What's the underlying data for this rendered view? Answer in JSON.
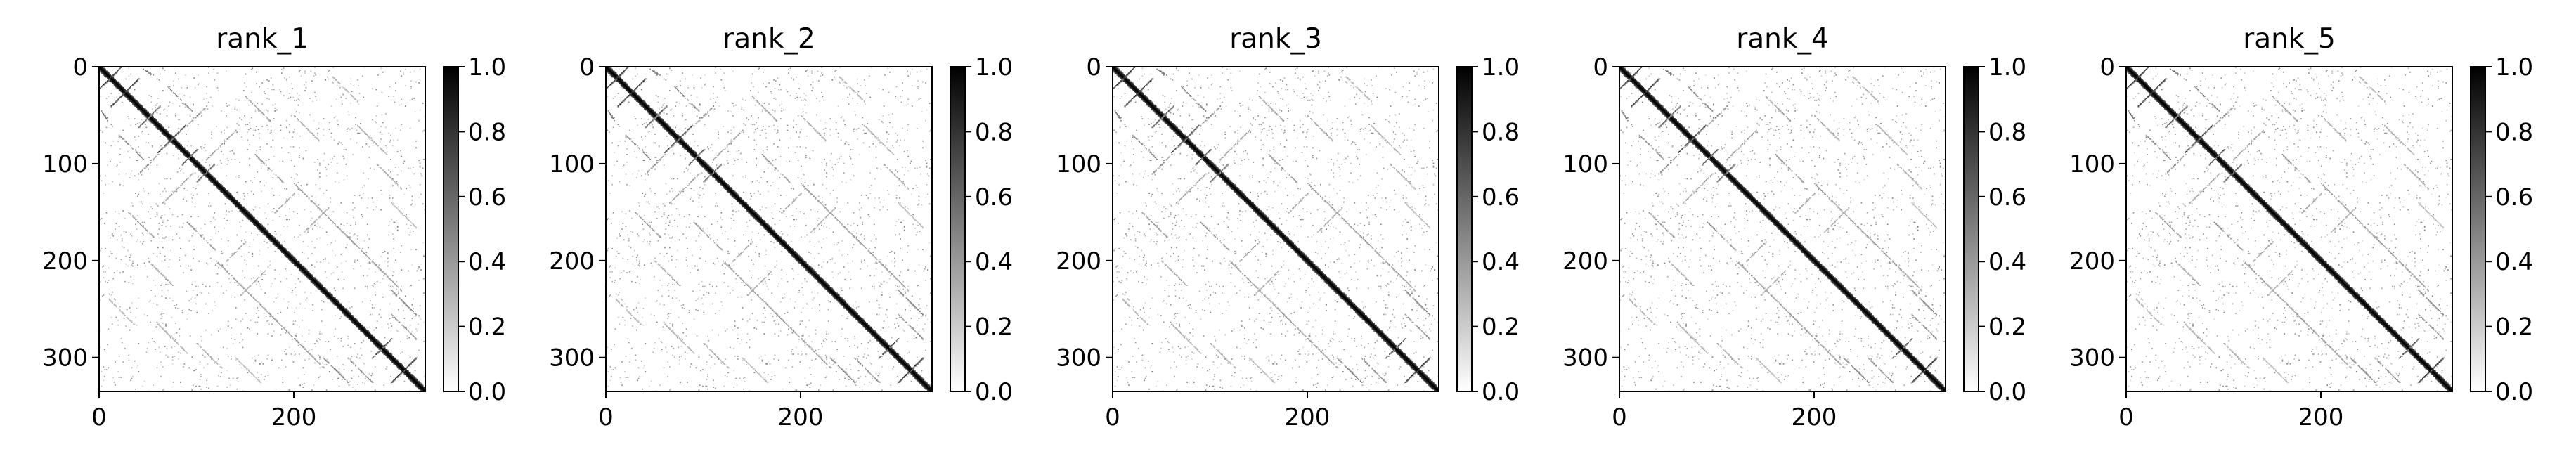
{
  "chart_data": [
    {
      "type": "heatmap",
      "title": "rank_1",
      "xlabel": "",
      "ylabel": "",
      "n": 335,
      "xlim": [
        0,
        335
      ],
      "ylim": [
        335,
        0
      ],
      "xticks": [
        0,
        200
      ],
      "yticks": [
        0,
        100,
        200,
        300
      ],
      "colormap": "Greys",
      "colorbar": {
        "range": [
          0.0,
          1.0
        ],
        "ticks": [
          0.0,
          0.2,
          0.4,
          0.6,
          0.8,
          1.0
        ],
        "tick_labels": [
          "0.0",
          "0.2",
          "0.4",
          "0.6",
          "0.8",
          "1.0"
        ]
      },
      "structure": "symmetric contact map: strong main diagonal, parallel off-diagonal helix bands, antiparallel strand segments and sparse scattered contacts; values in 0–1"
    },
    {
      "type": "heatmap",
      "title": "rank_2",
      "xlabel": "",
      "ylabel": "",
      "n": 335,
      "xlim": [
        0,
        335
      ],
      "ylim": [
        335,
        0
      ],
      "xticks": [
        0,
        200
      ],
      "yticks": [
        0,
        100,
        200,
        300
      ],
      "colormap": "Greys",
      "colorbar": {
        "range": [
          0.0,
          1.0
        ],
        "ticks": [
          0.0,
          0.2,
          0.4,
          0.6,
          0.8,
          1.0
        ],
        "tick_labels": [
          "0.0",
          "0.2",
          "0.4",
          "0.6",
          "0.8",
          "1.0"
        ]
      },
      "structure": "symmetric contact map: strong main diagonal, parallel off-diagonal helix bands, antiparallel strand segments and sparse scattered contacts; values in 0–1"
    },
    {
      "type": "heatmap",
      "title": "rank_3",
      "xlabel": "",
      "ylabel": "",
      "n": 335,
      "xlim": [
        0,
        335
      ],
      "ylim": [
        335,
        0
      ],
      "xticks": [
        0,
        200
      ],
      "yticks": [
        0,
        100,
        200,
        300
      ],
      "colormap": "Greys",
      "colorbar": {
        "range": [
          0.0,
          1.0
        ],
        "ticks": [
          0.0,
          0.2,
          0.4,
          0.6,
          0.8,
          1.0
        ],
        "tick_labels": [
          "0.0",
          "0.2",
          "0.4",
          "0.6",
          "0.8",
          "1.0"
        ]
      },
      "structure": "symmetric contact map: strong main diagonal, parallel off-diagonal helix bands, antiparallel strand segments and sparse scattered contacts; values in 0–1"
    },
    {
      "type": "heatmap",
      "title": "rank_4",
      "xlabel": "",
      "ylabel": "",
      "n": 335,
      "xlim": [
        0,
        335
      ],
      "ylim": [
        335,
        0
      ],
      "xticks": [
        0,
        200
      ],
      "yticks": [
        0,
        100,
        200,
        300
      ],
      "colormap": "Greys",
      "colorbar": {
        "range": [
          0.0,
          1.0
        ],
        "ticks": [
          0.0,
          0.2,
          0.4,
          0.6,
          0.8,
          1.0
        ],
        "tick_labels": [
          "0.0",
          "0.2",
          "0.4",
          "0.6",
          "0.8",
          "1.0"
        ]
      },
      "structure": "symmetric contact map: strong main diagonal, parallel off-diagonal helix bands, antiparallel strand segments and sparse scattered contacts; values in 0–1"
    },
    {
      "type": "heatmap",
      "title": "rank_5",
      "xlabel": "",
      "ylabel": "",
      "n": 335,
      "xlim": [
        0,
        335
      ],
      "ylim": [
        335,
        0
      ],
      "xticks": [
        0,
        200
      ],
      "yticks": [
        0,
        100,
        200,
        300
      ],
      "colormap": "Greys",
      "colorbar": {
        "range": [
          0.0,
          1.0
        ],
        "ticks": [
          0.0,
          0.2,
          0.4,
          0.6,
          0.8,
          1.0
        ],
        "tick_labels": [
          "0.0",
          "0.2",
          "0.4",
          "0.6",
          "0.8",
          "1.0"
        ]
      },
      "structure": "symmetric contact map: strong main diagonal, parallel off-diagonal helix bands, antiparallel strand segments and sparse scattered contacts; values in 0–1"
    }
  ]
}
